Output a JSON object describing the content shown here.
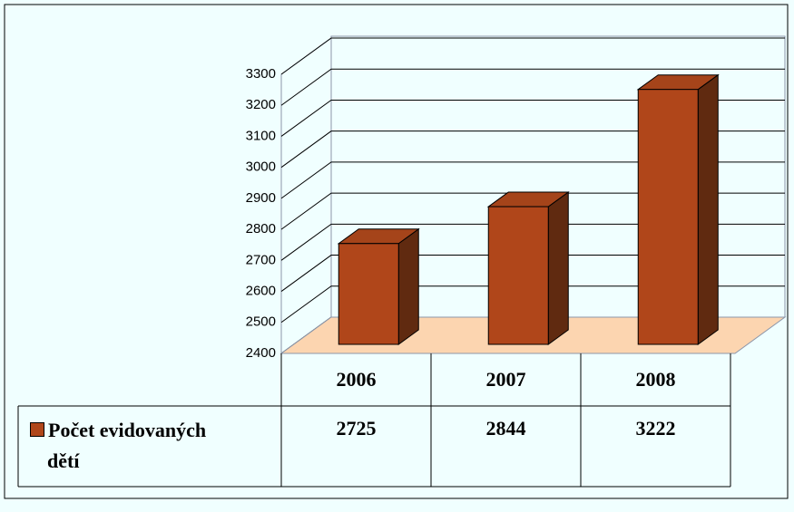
{
  "chart_data": {
    "type": "bar3d",
    "categories": [
      "2006",
      "2007",
      "2008"
    ],
    "series": [
      {
        "name": "Počet evidovaných dětí",
        "color": "#b0461a",
        "values": [
          2725,
          2844,
          3222
        ]
      }
    ],
    "ylim": [
      2400,
      3300
    ],
    "yticks": [
      2400,
      2500,
      2600,
      2700,
      2800,
      2900,
      3000,
      3100,
      3200,
      3300
    ],
    "grid": true
  }
}
